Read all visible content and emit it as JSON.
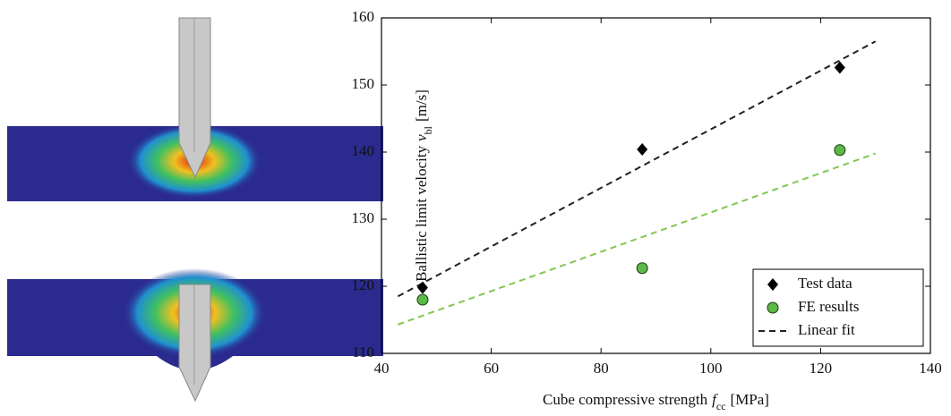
{
  "chart_data": {
    "type": "scatter",
    "xlabel": [
      "Cube compressive strength",
      "f",
      "cc",
      "[MPa]"
    ],
    "ylabel": [
      "Ballistic limit velocity",
      "v",
      "bl",
      "[m/s]"
    ],
    "xlim": [
      40,
      140
    ],
    "xticks": [
      40,
      60,
      80,
      100,
      120,
      140
    ],
    "ylim": [
      110,
      160
    ],
    "yticks": [
      110,
      120,
      130,
      140,
      150,
      160
    ],
    "legend": "lower right",
    "series": [
      {
        "name": "Test data",
        "type": "scatter",
        "marker": "diamond",
        "color": "#000000",
        "x": [
          47.5,
          87.5,
          123.5
        ],
        "values": [
          119.8,
          140.4,
          152.6
        ]
      },
      {
        "name": "FE results",
        "type": "scatter",
        "marker": "circle",
        "color": "#5cb848",
        "x": [
          47.5,
          87.5,
          123.5
        ],
        "values": [
          118.0,
          122.7,
          140.3
        ]
      },
      {
        "name": "Linear fit",
        "type": "line",
        "dash": true,
        "color": "#222222",
        "x": [
          43,
          130
        ],
        "values": [
          118.5,
          156.5
        ]
      },
      {
        "type": "line",
        "dash": true,
        "color": "#7ec850",
        "x": [
          43,
          130
        ],
        "values": [
          114.3,
          139.8
        ]
      }
    ]
  }
}
